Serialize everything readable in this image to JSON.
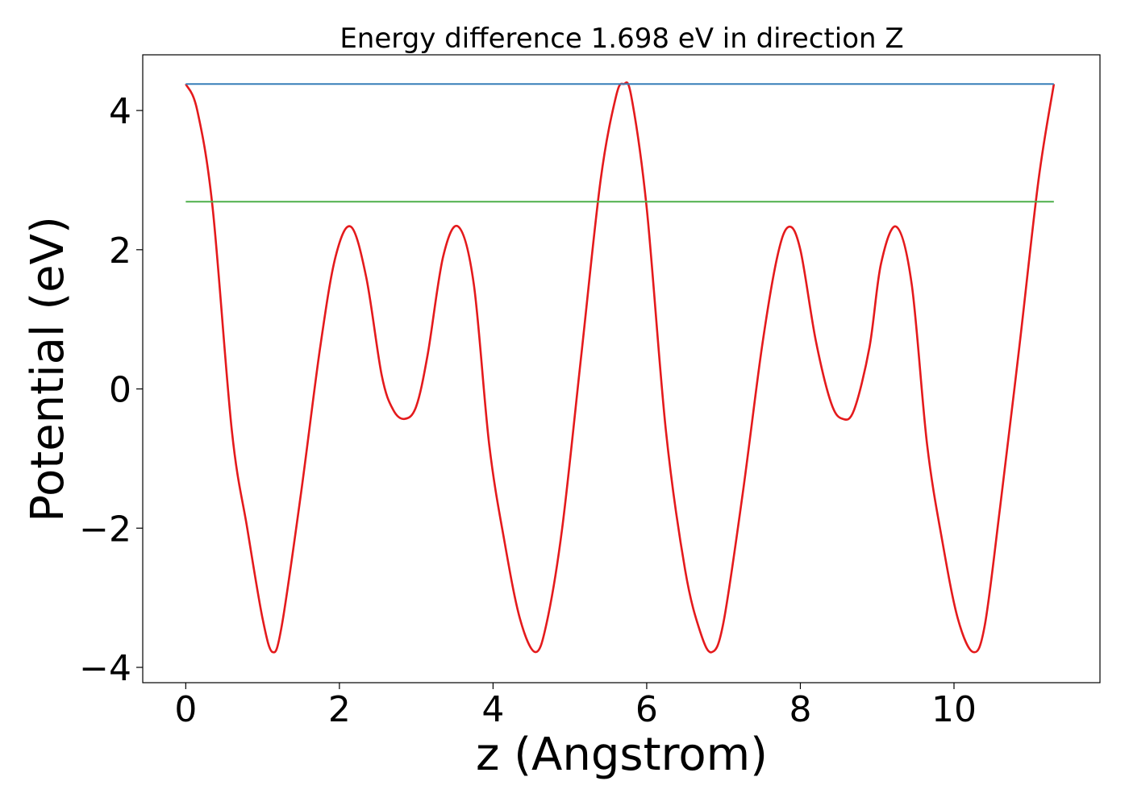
{
  "chart_data": {
    "type": "line",
    "title": "Energy difference 1.698 eV in direction Z",
    "xlabel": "z (Angstrom)",
    "ylabel": "Potential (eV)",
    "xlim": [
      -0.56,
      11.9
    ],
    "ylim": [
      -4.22,
      4.8
    ],
    "xticks": [
      0,
      2,
      4,
      6,
      8,
      10
    ],
    "yticks": [
      -4,
      -2,
      0,
      2,
      4
    ],
    "grid": false,
    "series": [
      {
        "color": "#e41a1c",
        "style": "curve",
        "x": [
          0,
          0.15,
          0.35,
          0.6,
          0.8,
          1.0,
          1.13,
          1.25,
          1.5,
          1.75,
          1.95,
          2.15,
          2.35,
          2.55,
          2.7,
          2.85,
          3.0,
          3.15,
          3.35,
          3.55,
          3.75,
          3.95,
          4.15,
          4.35,
          4.55,
          4.7,
          4.9,
          5.15,
          5.4,
          5.6,
          5.7,
          5.8,
          6.0,
          6.25,
          6.5,
          6.7,
          6.85,
          7.0,
          7.25,
          7.5,
          7.7,
          7.85,
          8.0,
          8.2,
          8.4,
          8.55,
          8.7,
          8.9,
          9.05,
          9.25,
          9.45,
          9.65,
          9.85,
          10.05,
          10.25,
          10.4,
          10.6,
          10.85,
          11.1,
          11.3
        ],
        "y": [
          4.38,
          4.0,
          2.6,
          -0.6,
          -2.0,
          -3.3,
          -3.78,
          -3.4,
          -1.5,
          0.6,
          1.9,
          2.33,
          1.6,
          0.2,
          -0.3,
          -0.43,
          -0.25,
          0.5,
          1.9,
          2.33,
          1.5,
          -0.8,
          -2.2,
          -3.3,
          -3.78,
          -3.35,
          -2.0,
          0.5,
          3.0,
          4.2,
          4.38,
          4.2,
          2.6,
          -0.6,
          -2.6,
          -3.5,
          -3.78,
          -3.35,
          -1.5,
          0.6,
          1.9,
          2.33,
          2.0,
          0.7,
          -0.2,
          -0.43,
          -0.3,
          0.6,
          1.8,
          2.33,
          1.5,
          -0.8,
          -2.2,
          -3.3,
          -3.78,
          -3.4,
          -1.7,
          0.6,
          3.0,
          4.38
        ]
      },
      {
        "color": "#377eb8",
        "style": "linear",
        "x": [
          0,
          11.3
        ],
        "y": [
          4.38,
          4.38
        ]
      },
      {
        "color": "#4daf4a",
        "style": "linear",
        "x": [
          0,
          11.3
        ],
        "y": [
          2.69,
          2.69
        ]
      }
    ]
  }
}
